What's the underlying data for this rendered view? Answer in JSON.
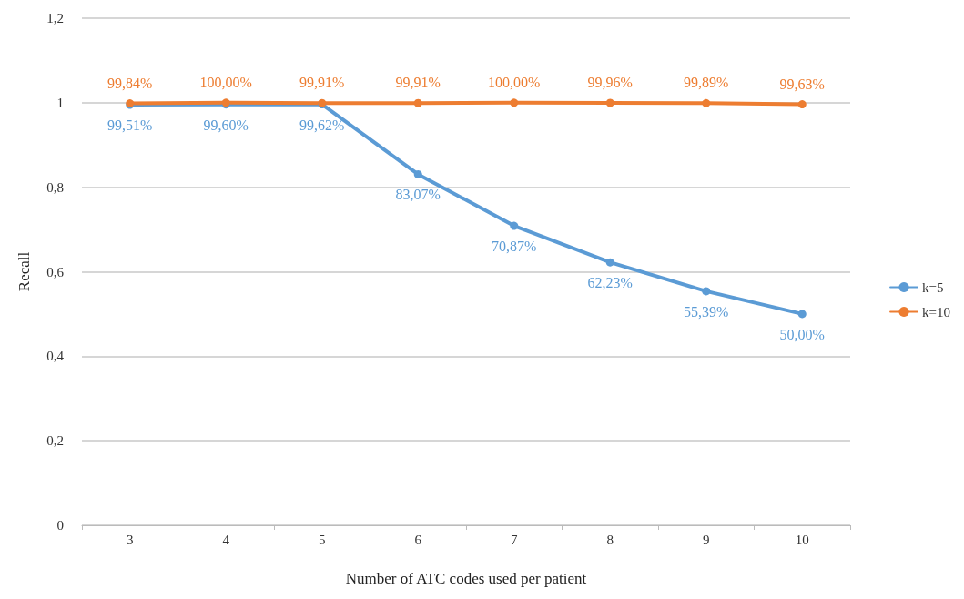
{
  "chart_data": {
    "type": "line",
    "xlabel": "Number of ATC codes used per patient",
    "ylabel": "Recall",
    "categories": [
      "3",
      "4",
      "5",
      "6",
      "7",
      "8",
      "9",
      "10"
    ],
    "series": [
      {
        "name": "k=5",
        "color": "#5b9bd5",
        "values": [
          0.9951,
          0.996,
          0.9962,
          0.8307,
          0.7087,
          0.6223,
          0.5539,
          0.5
        ],
        "value_labels": [
          "99,51%",
          "99,60%",
          "99,62%",
          "83,07%",
          "70,87%",
          "62,23%",
          "55,39%",
          "50,00%"
        ]
      },
      {
        "name": "k=10",
        "color": "#ed7d31",
        "values": [
          0.9984,
          1.0,
          0.9991,
          0.9991,
          1.0,
          0.9996,
          0.9989,
          0.9963
        ],
        "value_labels": [
          "99,84%",
          "100,00%",
          "99,91%",
          "99,91%",
          "100,00%",
          "99,96%",
          "99,89%",
          "99,63%"
        ]
      }
    ],
    "ylim": [
      0,
      1.2
    ],
    "yticks": [
      0,
      {
        "value": 0.2,
        "label": "0,2"
      },
      {
        "value": 0.4,
        "label": "0,4"
      },
      {
        "value": 0.6,
        "label": "0,6"
      },
      {
        "value": 0.8,
        "label": "0,8"
      },
      1,
      {
        "value": 1.2,
        "label": "1,2"
      }
    ],
    "grid": "y",
    "legend": "right",
    "marker": "circle",
    "line_style": "solid"
  }
}
